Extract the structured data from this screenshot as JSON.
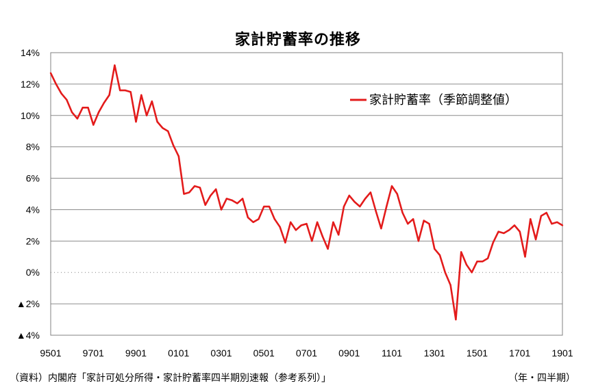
{
  "chart_data": {
    "type": "line",
    "title": "家計貯蓄率の推移",
    "ylim": [
      -4,
      14
    ],
    "y_ticks": [
      {
        "value": 14,
        "label": "14%"
      },
      {
        "value": 12,
        "label": "12%"
      },
      {
        "value": 10,
        "label": "10%"
      },
      {
        "value": 8,
        "label": "8%"
      },
      {
        "value": 6,
        "label": "6%"
      },
      {
        "value": 4,
        "label": "4%"
      },
      {
        "value": 2,
        "label": "2%"
      },
      {
        "value": 0,
        "label": "0%"
      },
      {
        "value": -2,
        "label": "▲2%"
      },
      {
        "value": -4,
        "label": "▲4%"
      }
    ],
    "x_ticks": [
      "9501",
      "9701",
      "9901",
      "0101",
      "0301",
      "0501",
      "0701",
      "0901",
      "1101",
      "1301",
      "1501",
      "1701",
      "1901"
    ],
    "grid": "horizontal",
    "zero_line": "dotted",
    "legend_position": "top-right",
    "series": [
      {
        "name": "家計貯蓄率（季節調整値）",
        "color": "#e31b1b",
        "x": [
          "9501",
          "9502",
          "9503",
          "9504",
          "9601",
          "9602",
          "9603",
          "9604",
          "9701",
          "9702",
          "9703",
          "9704",
          "9801",
          "9802",
          "9803",
          "9804",
          "9901",
          "9902",
          "9903",
          "9904",
          "0001",
          "0002",
          "0003",
          "0004",
          "0101",
          "0102",
          "0103",
          "0104",
          "0201",
          "0202",
          "0203",
          "0204",
          "0301",
          "0302",
          "0303",
          "0304",
          "0401",
          "0402",
          "0403",
          "0404",
          "0501",
          "0502",
          "0503",
          "0504",
          "0601",
          "0602",
          "0603",
          "0604",
          "0701",
          "0702",
          "0703",
          "0704",
          "0801",
          "0802",
          "0803",
          "0804",
          "0901",
          "0902",
          "0903",
          "0904",
          "1001",
          "1002",
          "1003",
          "1004",
          "1101",
          "1102",
          "1103",
          "1104",
          "1201",
          "1202",
          "1203",
          "1204",
          "1301",
          "1302",
          "1303",
          "1304",
          "1401",
          "1402",
          "1403",
          "1404",
          "1501",
          "1502",
          "1503",
          "1504",
          "1601",
          "1602",
          "1603",
          "1604",
          "1701",
          "1702",
          "1703",
          "1704",
          "1801",
          "1802",
          "1803",
          "1804",
          "1901"
        ],
        "values": [
          12.7,
          12.0,
          11.4,
          11.0,
          10.2,
          9.8,
          10.5,
          10.5,
          9.4,
          10.2,
          10.8,
          11.3,
          13.2,
          11.6,
          11.6,
          11.5,
          9.6,
          11.3,
          10.0,
          10.9,
          9.6,
          9.2,
          9.0,
          8.1,
          7.4,
          5.0,
          5.1,
          5.5,
          5.4,
          4.3,
          4.9,
          5.3,
          4.0,
          4.7,
          4.6,
          4.4,
          4.7,
          3.5,
          3.2,
          3.4,
          4.2,
          4.2,
          3.4,
          2.9,
          1.9,
          3.2,
          2.7,
          3.0,
          3.1,
          2.0,
          3.2,
          2.3,
          1.5,
          3.2,
          2.4,
          4.2,
          4.9,
          4.5,
          4.2,
          4.7,
          5.1,
          3.9,
          2.8,
          4.2,
          5.5,
          5.0,
          3.8,
          3.1,
          3.4,
          2.0,
          3.3,
          3.1,
          1.5,
          1.1,
          0.0,
          -0.8,
          -3.0,
          1.3,
          0.5,
          0.0,
          0.7,
          0.7,
          0.9,
          1.9,
          2.6,
          2.5,
          2.7,
          3.0,
          2.6,
          1.0,
          3.4,
          2.1,
          3.6,
          3.8,
          3.1,
          3.2,
          3.0
        ]
      }
    ]
  },
  "footer": {
    "source": "（資料）内閣府「家計可処分所得・家計貯蓄率四半期別速報（参考系列）」",
    "period_unit": "（年・四半期）"
  }
}
